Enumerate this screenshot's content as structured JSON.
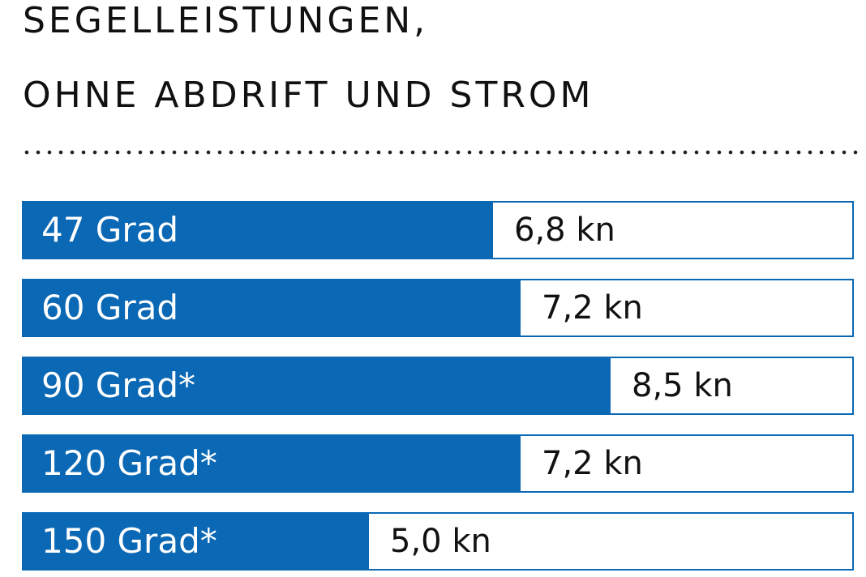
{
  "header": {
    "title_line1": "SEGELLEISTUNGEN,",
    "title_line2": "OHNE ABDRIFT UND STROM"
  },
  "colors": {
    "bar": "#0a68b5",
    "text": "#111111"
  },
  "chart_data": {
    "type": "bar",
    "orientation": "horizontal",
    "title": "SEGELLEISTUNGEN, OHNE ABDRIFT UND STROM",
    "categories": [
      "47 Grad",
      "60 Grad",
      "90 Grad*",
      "120 Grad*",
      "150 Grad*"
    ],
    "values": [
      6.8,
      7.2,
      8.5,
      7.2,
      5.0
    ],
    "value_labels": [
      "6,8 kn",
      "7,2 kn",
      "8,5 kn",
      "7,2 kn",
      "5,0 kn"
    ],
    "xlim": [
      0,
      12
    ],
    "grid": false,
    "legend": "none"
  }
}
